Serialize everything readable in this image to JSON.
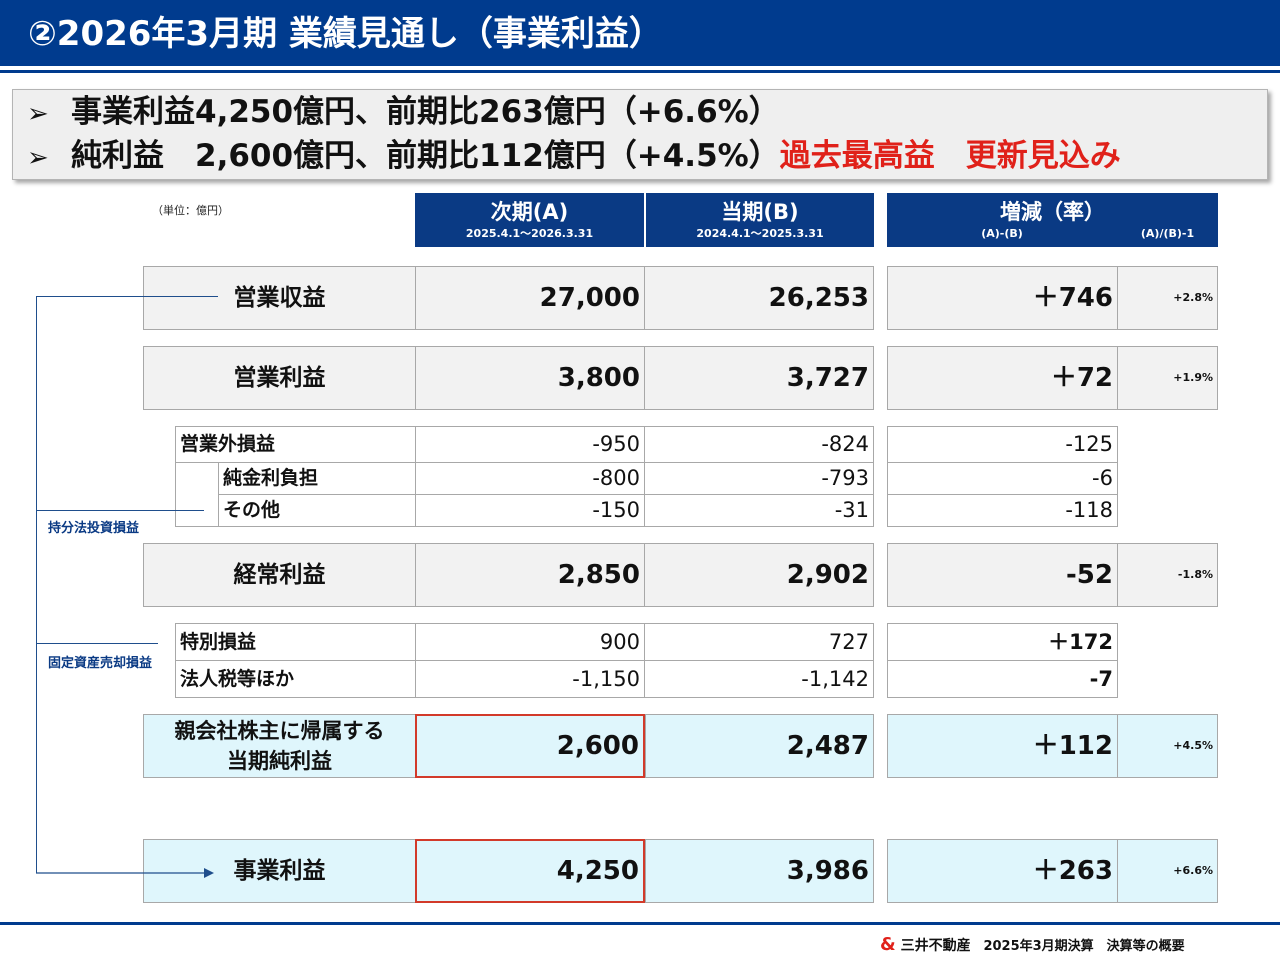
{
  "title": "②2026年3月期 業績見通し（事業利益）",
  "summary": {
    "line1": "事業利益4,250億円、前期比263億円（+6.6%）",
    "line2_prefix": "純利益　2,600億円、前期比112億円（+4.5%）",
    "line2_highlight": "過去最高益　更新見込み",
    "bullet_icon": "➢"
  },
  "unit_note": "（単位：億円）",
  "headers": {
    "next": {
      "title": "次期(A)",
      "period": "2025.4.1～2026.3.31"
    },
    "current": {
      "title": "当期(B)",
      "period": "2024.4.1～2025.3.31"
    },
    "change": {
      "title": "増減（率）",
      "sub_diff": "(A)-(B)",
      "sub_rate": "(A)/(B)-1"
    }
  },
  "rows": {
    "revenue": {
      "label": "営業収益",
      "a": "27,000",
      "b": "26,253",
      "diff": "＋746",
      "rate": "+2.8%"
    },
    "operating_income": {
      "label": "営業利益",
      "a": "3,800",
      "b": "3,727",
      "diff": "＋72",
      "rate": "+1.9%"
    },
    "non_operating": {
      "label": "営業外損益",
      "a": "-950",
      "b": "-824",
      "diff": "-125"
    },
    "net_interest": {
      "label": "純金利負担",
      "a": "-800",
      "b": "-793",
      "diff": "-6"
    },
    "other": {
      "label": "その他",
      "a": "-150",
      "b": "-31",
      "diff": "-118"
    },
    "ordinary_income": {
      "label": "経常利益",
      "a": "2,850",
      "b": "2,902",
      "diff": "-52",
      "rate": "-1.8%"
    },
    "extraordinary": {
      "label": "特別損益",
      "a": "900",
      "b": "727",
      "diff": "＋172"
    },
    "taxes": {
      "label": "法人税等ほか",
      "a": "-1,150",
      "b": "-1,142",
      "diff": "-7"
    },
    "net_income": {
      "label_line1": "親会社株主に帰属する",
      "label_line2": "当期純利益",
      "a": "2,600",
      "b": "2,487",
      "diff": "＋112",
      "rate": "+4.5%"
    },
    "business_profit": {
      "label": "事業利益",
      "a": "4,250",
      "b": "3,986",
      "diff": "＋263",
      "rate": "+6.6%"
    }
  },
  "bracket_labels": {
    "equity_method": "持分法投資損益",
    "fixed_asset_sales": "固定資産売却損益"
  },
  "footer": {
    "logo": "&",
    "company": "三井不動産",
    "doc": "2025年3月期決算　決算等の概要"
  }
}
